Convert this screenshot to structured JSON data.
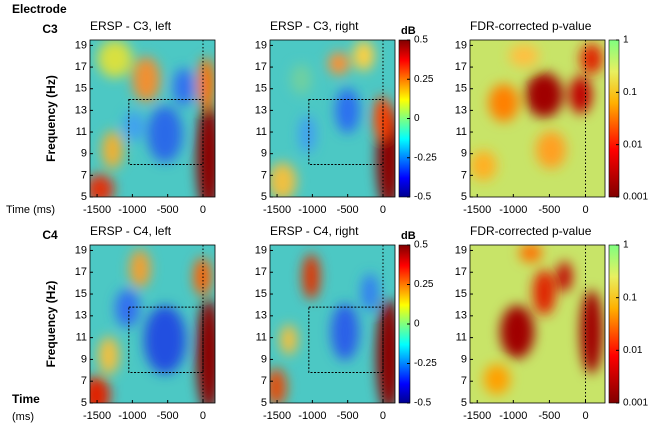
{
  "heading": "Electrode",
  "rows": [
    "C3",
    "C4"
  ],
  "chart_data": [
    {
      "type": "heatmap",
      "title": "ERSP - C3, left",
      "xlabel": [
        "Time (ms)"
      ],
      "ylabel": "Frequency (Hz)",
      "xlim": [
        -1600,
        170
      ],
      "ylim": [
        5,
        19.5
      ],
      "xticks": [
        -1500,
        -1000,
        -500,
        0
      ],
      "yticks": [
        5,
        7,
        9,
        11,
        13,
        15,
        17,
        19
      ],
      "roi_x": [
        -1050,
        0
      ],
      "roi_y": [
        8,
        14
      ]
    },
    {
      "type": "heatmap",
      "title": "ERSP - C3, right",
      "xlim": [
        -1600,
        170
      ],
      "ylim": [
        5,
        19.5
      ],
      "xticks": [
        -1500,
        -1000,
        -500,
        0
      ],
      "yticks": [
        5,
        7,
        9,
        11,
        13,
        15,
        17,
        19
      ],
      "roi_x": [
        -1050,
        0
      ],
      "roi_y": [
        8,
        14
      ],
      "colorbar": {
        "label": "dB",
        "lim": [
          -0.5,
          0.5
        ],
        "ticks": [
          0.5,
          0.25,
          0,
          -0.25,
          -0.5
        ],
        "log": false
      }
    },
    {
      "type": "heatmap",
      "title": "FDR-corrected p-value",
      "xlim": [
        -1600,
        270
      ],
      "ylim": [
        5,
        19.5
      ],
      "xticks": [
        -1500,
        -1000,
        -500,
        0
      ],
      "yticks": [
        5,
        7,
        9,
        11,
        13,
        15,
        17,
        19
      ],
      "colorbar": {
        "lim": [
          0.001,
          1
        ],
        "ticks": [
          1,
          0.1,
          0.01,
          0.001
        ],
        "log": true
      }
    },
    {
      "type": "heatmap",
      "title": "ERSP - C4, left",
      "xlabel": [
        "Time",
        "(ms)"
      ],
      "ylabel": "Frequency (Hz)",
      "xlim": [
        -1600,
        170
      ],
      "ylim": [
        5,
        19.5
      ],
      "xticks": [
        -1500,
        -1000,
        -500,
        0
      ],
      "yticks": [
        5,
        7,
        9,
        11,
        13,
        15,
        17,
        19
      ],
      "roi_x": [
        -1050,
        0
      ],
      "roi_y": [
        7.8,
        13.8
      ]
    },
    {
      "type": "heatmap",
      "title": "ERSP - C4, right",
      "xlim": [
        -1600,
        170
      ],
      "ylim": [
        5,
        19.5
      ],
      "xticks": [
        -1500,
        -1000,
        -500,
        0
      ],
      "yticks": [
        5,
        7,
        9,
        11,
        13,
        15,
        17,
        19
      ],
      "roi_x": [
        -1050,
        0
      ],
      "roi_y": [
        7.8,
        13.8
      ],
      "colorbar": {
        "label": "dB",
        "lim": [
          -0.5,
          0.5
        ],
        "ticks": [
          0.5,
          0.25,
          0,
          -0.25,
          -0.5
        ],
        "log": false
      }
    },
    {
      "type": "heatmap",
      "title": "FDR-corrected p-value",
      "xlim": [
        -1600,
        270
      ],
      "ylim": [
        5,
        19.5
      ],
      "xticks": [
        -1500,
        -1000,
        -500,
        0
      ],
      "yticks": [
        5,
        7,
        9,
        11,
        13,
        15,
        17,
        19
      ],
      "colorbar": {
        "lim": [
          0.001,
          1
        ],
        "ticks": [
          1,
          0.1,
          0.01,
          0.001
        ],
        "log": true
      }
    }
  ]
}
